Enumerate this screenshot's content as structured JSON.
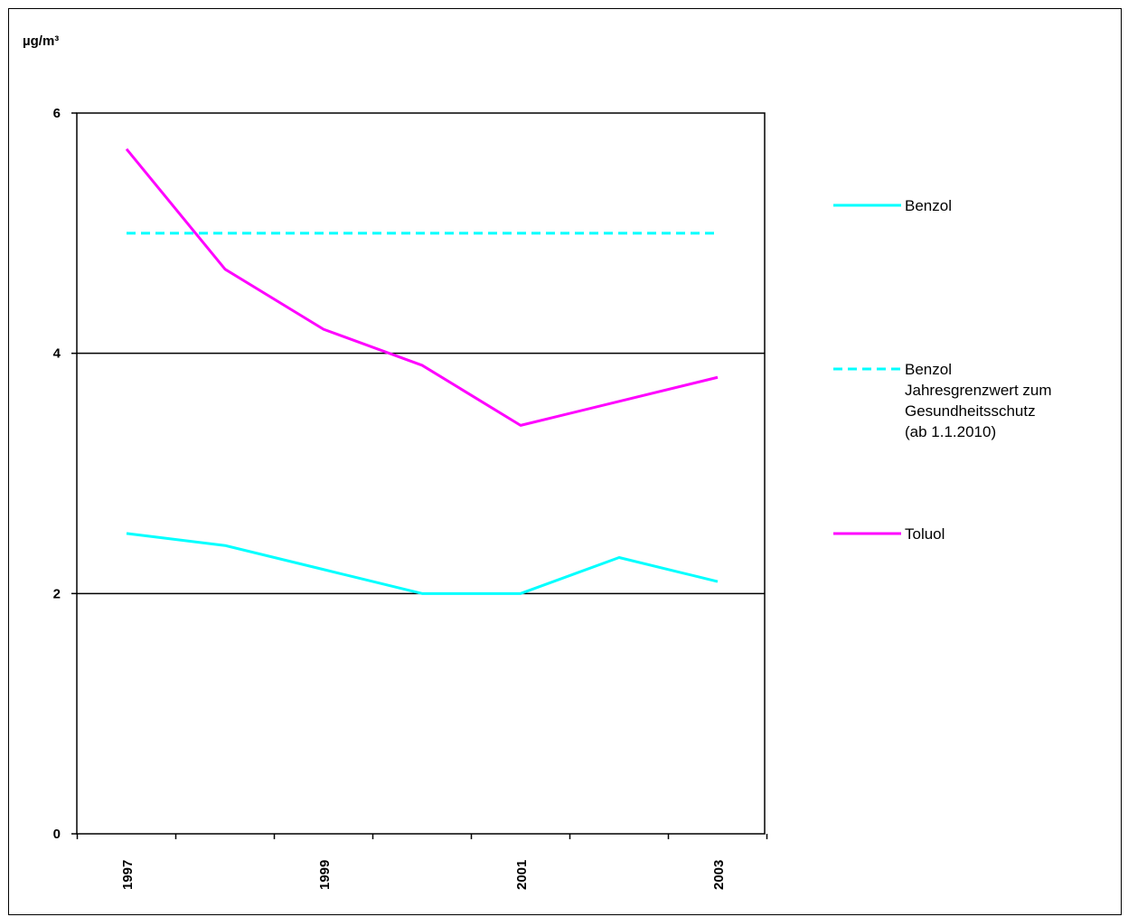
{
  "chart_data": {
    "type": "line",
    "ylabel": "µg/m³",
    "xlabel": "",
    "title": "",
    "ylim": [
      0,
      6
    ],
    "yticks": [
      0,
      2,
      4,
      6
    ],
    "x": [
      1997,
      1998,
      1999,
      2000,
      2001,
      2002,
      2003
    ],
    "xtick_labels": [
      "1997",
      "1999",
      "2001",
      "2003"
    ],
    "grid": "horizontal at y=2 and y=4",
    "legend_position": "right",
    "series": [
      {
        "name": "Benzol",
        "color": "#00FFFF",
        "style": "solid",
        "values": [
          2.5,
          2.4,
          2.2,
          2.0,
          2.0,
          2.3,
          2.1
        ]
      },
      {
        "name_lines": [
          "Benzol",
          "Jahresgrenzwert zum",
          "Gesundheitsschutz",
          "(ab 1.1.2010)"
        ],
        "color": "#00FFFF",
        "style": "dashed",
        "values": [
          5,
          5,
          5,
          5,
          5,
          5,
          5
        ]
      },
      {
        "name": "Toluol",
        "color": "#FF00FF",
        "style": "solid",
        "values": [
          5.7,
          4.7,
          4.2,
          3.9,
          3.4,
          3.6,
          3.8
        ]
      }
    ]
  }
}
